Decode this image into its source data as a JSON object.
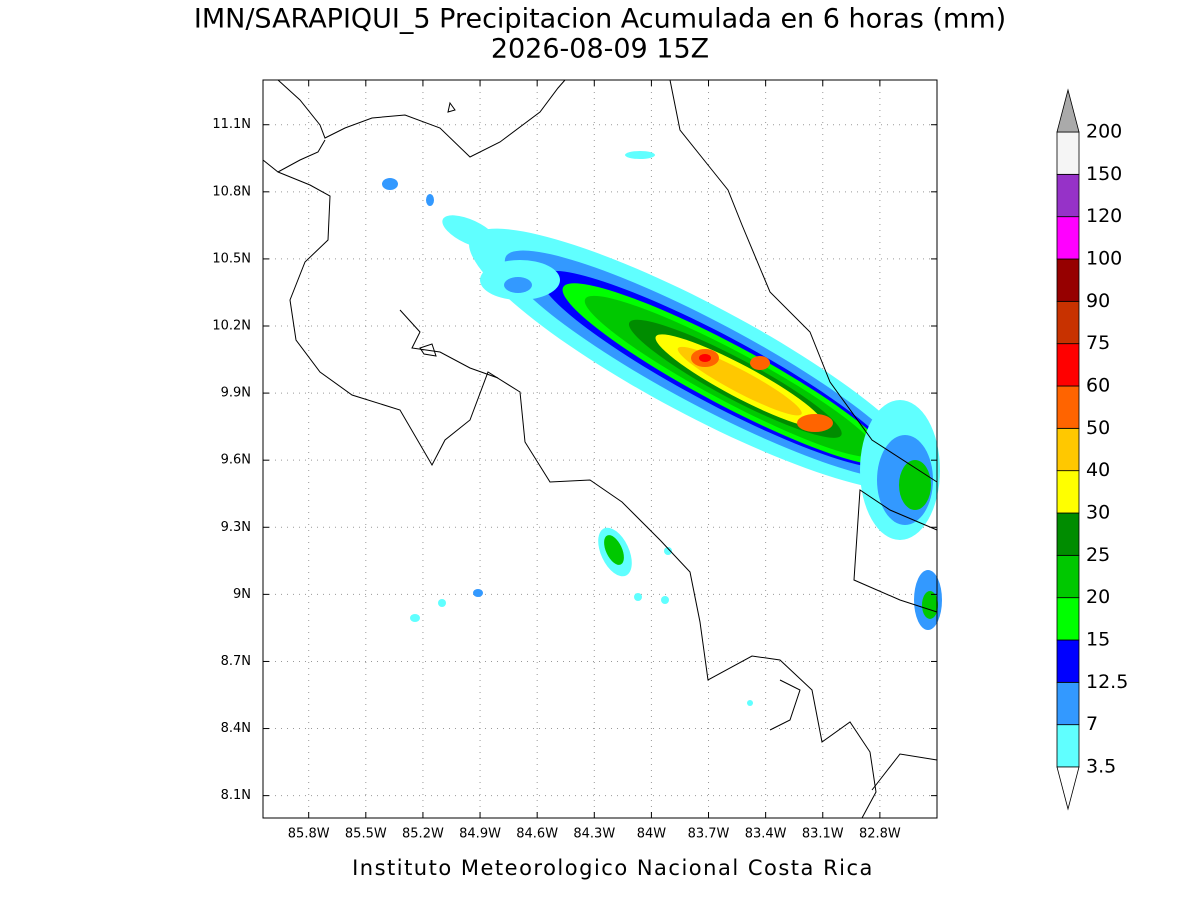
{
  "title": "IMN/SARAPIQUI_5 Precipitacion Acumulada en 6 horas (mm)",
  "subtitle": "2026-08-09 15Z",
  "footer": "Instituto Meteorologico Nacional Costa Rica",
  "map": {
    "xlim": [
      -86.04,
      -82.5
    ],
    "ylim": [
      8.0,
      11.3
    ],
    "grid": true,
    "xticks": [
      {
        "value": -85.8,
        "label": "85.8W"
      },
      {
        "value": -85.5,
        "label": "85.5W"
      },
      {
        "value": -85.2,
        "label": "85.2W"
      },
      {
        "value": -84.9,
        "label": "84.9W"
      },
      {
        "value": -84.6,
        "label": "84.6W"
      },
      {
        "value": -84.3,
        "label": "84.3W"
      },
      {
        "value": -84.0,
        "label": "84W"
      },
      {
        "value": -83.7,
        "label": "83.7W"
      },
      {
        "value": -83.4,
        "label": "83.4W"
      },
      {
        "value": -83.1,
        "label": "83.1W"
      },
      {
        "value": -82.8,
        "label": "82.8W"
      }
    ],
    "yticks": [
      {
        "value": 11.1,
        "label": "11.1N"
      },
      {
        "value": 10.8,
        "label": "10.8N"
      },
      {
        "value": 10.5,
        "label": "10.5N"
      },
      {
        "value": 10.2,
        "label": "10.2N"
      },
      {
        "value": 9.9,
        "label": "9.9N"
      },
      {
        "value": 9.6,
        "label": "9.6N"
      },
      {
        "value": 9.3,
        "label": "9.3N"
      },
      {
        "value": 9.0,
        "label": "9N"
      },
      {
        "value": 8.7,
        "label": "8.7N"
      },
      {
        "value": 8.4,
        "label": "8.4N"
      },
      {
        "value": 8.1,
        "label": "8.1N"
      }
    ]
  },
  "colorbar": {
    "levels": [
      3.5,
      7,
      12.5,
      15,
      20,
      25,
      30,
      40,
      50,
      60,
      75,
      90,
      100,
      120,
      150,
      200
    ],
    "colors": [
      "#60ffff",
      "#3399ff",
      "#0000ff",
      "#00ff00",
      "#00c800",
      "#008c00",
      "#ffff00",
      "#ffc800",
      "#ff6400",
      "#ff0000",
      "#c83200",
      "#960000",
      "#ff00ff",
      "#9632c8",
      "#f5f5f5"
    ],
    "under_color": "#ffffff",
    "over_color": "#aaaaaa"
  }
}
